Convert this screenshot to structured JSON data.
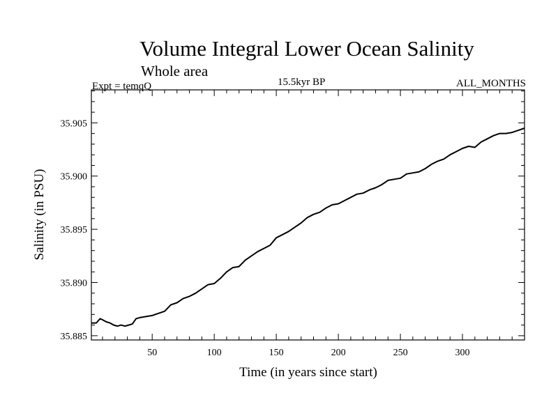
{
  "chart_data": {
    "type": "line",
    "title": "Volume Integral Lower Ocean Salinity",
    "subtitle": "Whole area",
    "experiment_label": "Expt = temqQ",
    "period_label": "15.5kyr BP",
    "months_label": "ALL_MONTHS",
    "xlabel": "Time (in years since start)",
    "ylabel": "Salinity (in PSU)",
    "xlim": [
      1,
      350
    ],
    "ylim": [
      35.8846,
      35.9081
    ],
    "x_ticks": [
      50,
      100,
      150,
      200,
      250,
      300
    ],
    "y_ticks": [
      35.885,
      35.89,
      35.895,
      35.9,
      35.905
    ],
    "y_tick_labels": [
      "35.885",
      "35.890",
      "35.895",
      "35.900",
      "35.905"
    ],
    "line_color": "#000000",
    "series": [
      {
        "name": "Salinity",
        "x": [
          1,
          5,
          8,
          10,
          13,
          16,
          19,
          22,
          25,
          28,
          31,
          34,
          37,
          40,
          45,
          50,
          55,
          60,
          65,
          70,
          75,
          80,
          85,
          90,
          95,
          100,
          105,
          110,
          115,
          120,
          125,
          130,
          135,
          140,
          145,
          150,
          155,
          160,
          165,
          170,
          175,
          180,
          185,
          190,
          195,
          200,
          205,
          210,
          215,
          220,
          225,
          230,
          235,
          240,
          245,
          250,
          255,
          260,
          265,
          270,
          275,
          280,
          285,
          290,
          295,
          300,
          305,
          310,
          315,
          320,
          325,
          330,
          335,
          340,
          345,
          350
        ],
        "values": [
          35.8862,
          35.8862,
          35.8866,
          35.8865,
          35.8863,
          35.8862,
          35.886,
          35.8859,
          35.886,
          35.8859,
          35.886,
          35.8861,
          35.8866,
          35.8867,
          35.8868,
          35.8869,
          35.8871,
          35.8873,
          35.8879,
          35.8881,
          35.8885,
          35.8887,
          35.889,
          35.8894,
          35.8898,
          35.8899,
          35.8904,
          35.891,
          35.8914,
          35.8915,
          35.8921,
          35.8925,
          35.8929,
          35.8932,
          35.8935,
          35.8942,
          35.8945,
          35.8948,
          35.8952,
          35.8956,
          35.8961,
          35.8964,
          35.8966,
          35.897,
          35.8973,
          35.8974,
          35.8977,
          35.898,
          35.8983,
          35.8984,
          35.8987,
          35.8989,
          35.8992,
          35.8996,
          35.8997,
          35.8998,
          35.9002,
          35.9003,
          35.9004,
          35.9007,
          35.9011,
          35.9014,
          35.9016,
          35.902,
          35.9023,
          35.9026,
          35.9028,
          35.9027,
          35.9032,
          35.9035,
          35.9038,
          35.904,
          35.904,
          35.9041,
          35.9043,
          35.9045
        ]
      }
    ]
  }
}
